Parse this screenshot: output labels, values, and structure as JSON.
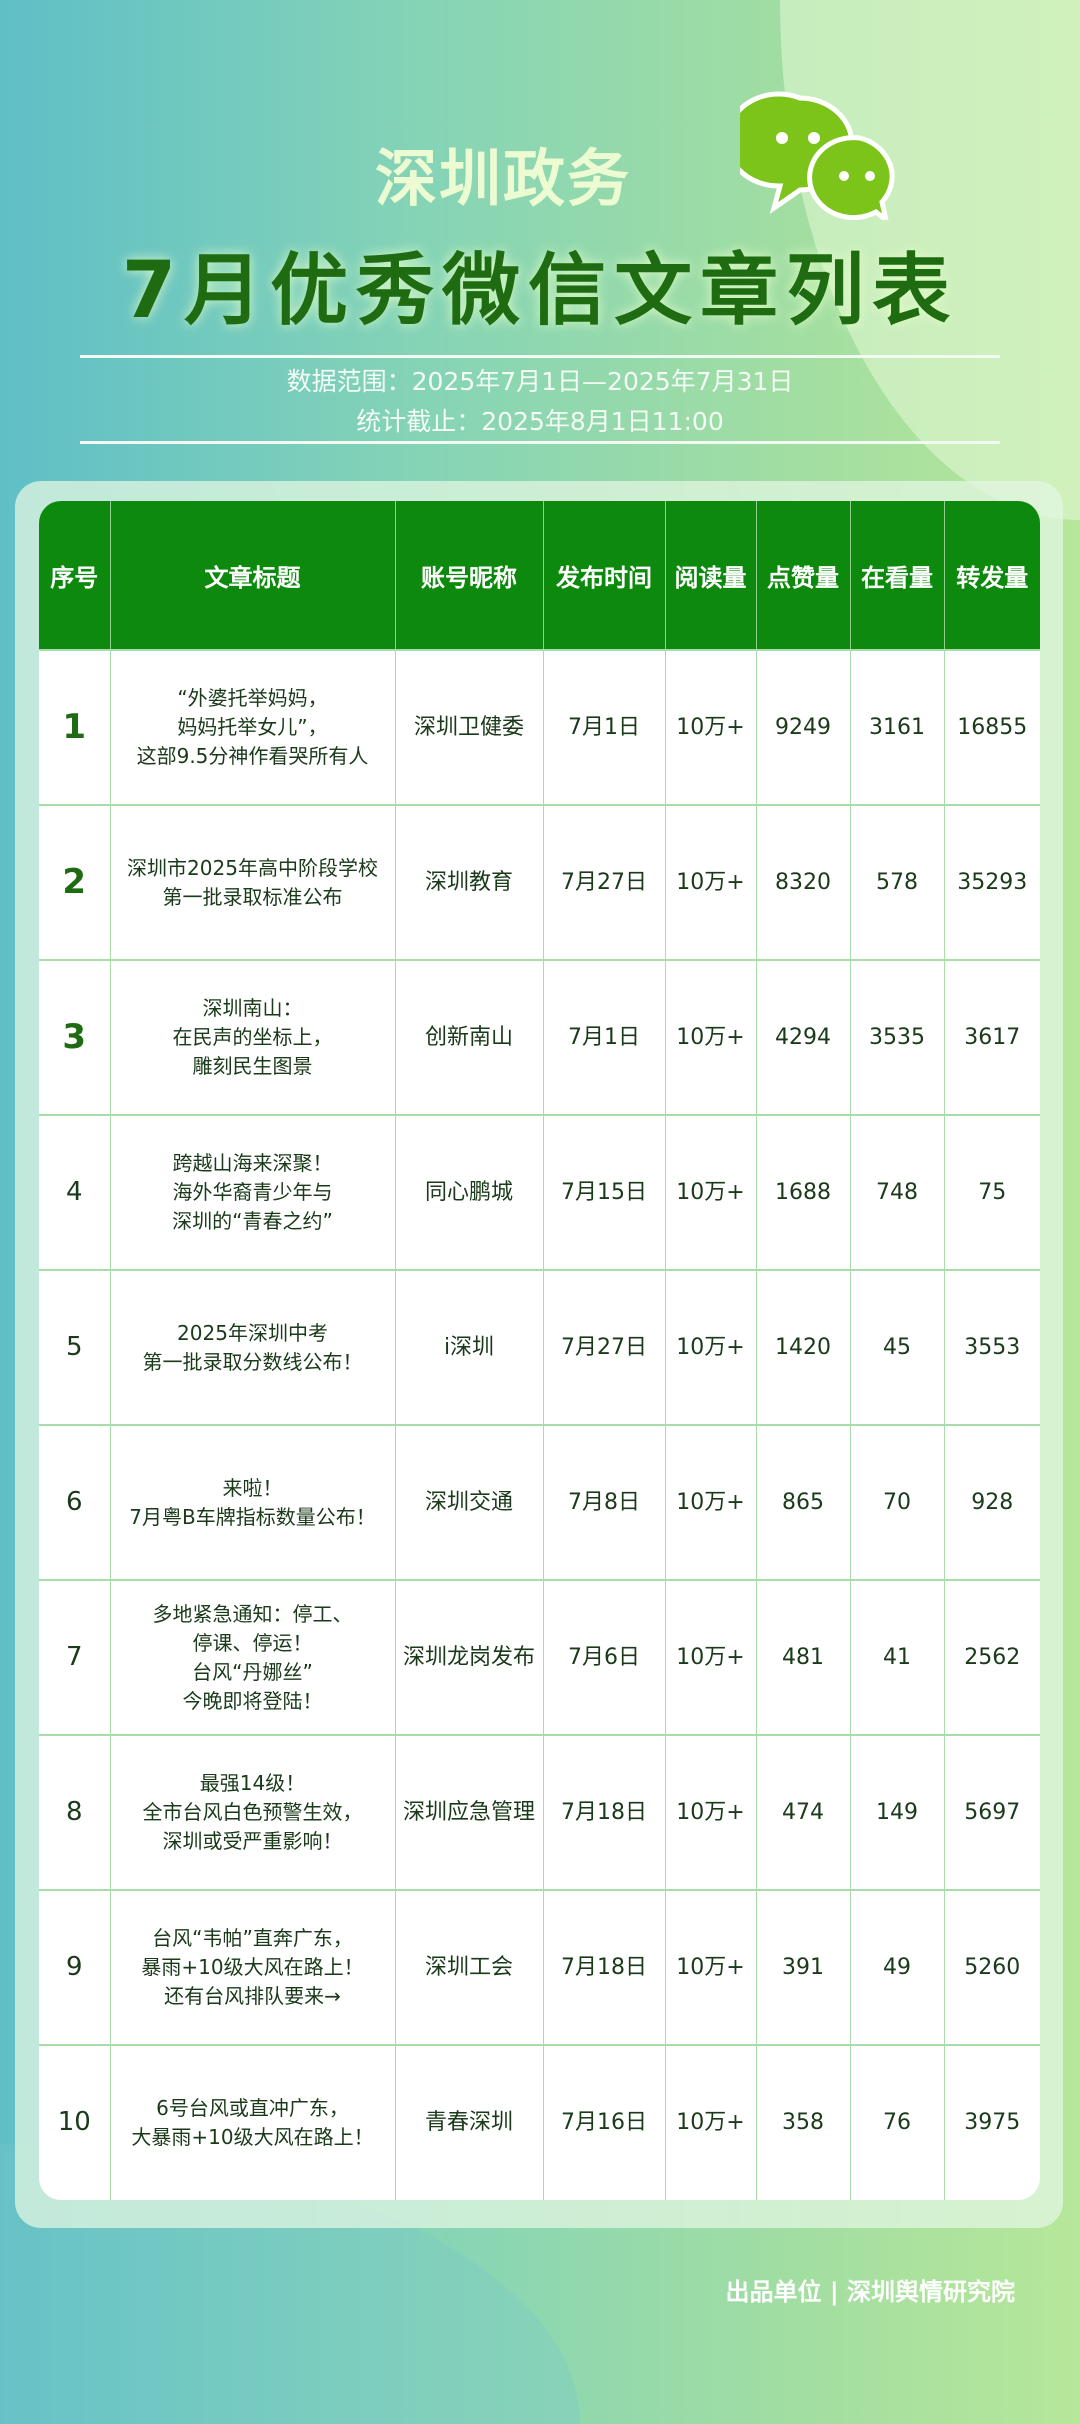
{
  "header": {
    "subtitle": "深圳政务",
    "title": "7月优秀微信文章列表",
    "logo_icon": "wechat-icon",
    "data_range": "数据范围：2025年7月1日—2025年7月31日",
    "cutoff": "统计截止：2025年8月1日11:00"
  },
  "table": {
    "columns": [
      "序号",
      "文章标题",
      "账号昵称",
      "发布时间",
      "阅读量",
      "点赞量",
      "在看量",
      "转发量"
    ],
    "rows": [
      {
        "rank": "1",
        "title": "“外婆托举妈妈，\n妈妈托举女儿”，\n这部9.5分神作看哭所有人",
        "account": "深圳卫健委",
        "date": "7月1日",
        "reads": "10万+",
        "likes": "9249",
        "views": "3161",
        "shares": "16855"
      },
      {
        "rank": "2",
        "title": "深圳市2025年高中阶段学校\n第一批录取标准公布",
        "account": "深圳教育",
        "date": "7月27日",
        "reads": "10万+",
        "likes": "8320",
        "views": "578",
        "shares": "35293"
      },
      {
        "rank": "3",
        "title": "深圳南山：\n在民声的坐标上，\n雕刻民生图景",
        "account": "创新南山",
        "date": "7月1日",
        "reads": "10万+",
        "likes": "4294",
        "views": "3535",
        "shares": "3617"
      },
      {
        "rank": "4",
        "title": "跨越山海来深聚！\n海外华裔青少年与\n深圳的“青春之约”",
        "account": "同心鹏城",
        "date": "7月15日",
        "reads": "10万+",
        "likes": "1688",
        "views": "748",
        "shares": "75"
      },
      {
        "rank": "5",
        "title": "2025年深圳中考\n第一批录取分数线公布！",
        "account": "i深圳",
        "date": "7月27日",
        "reads": "10万+",
        "likes": "1420",
        "views": "45",
        "shares": "3553"
      },
      {
        "rank": "6",
        "title": "来啦！\n7月粤B车牌指标数量公布！",
        "account": "深圳交通",
        "date": "7月8日",
        "reads": "10万+",
        "likes": "865",
        "views": "70",
        "shares": "928"
      },
      {
        "rank": "7",
        "title": "多地紧急通知：停工、\n停课、停运！\n台风“丹娜丝”\n今晚即将登陆！",
        "account": "深圳龙岗发布",
        "date": "7月6日",
        "reads": "10万+",
        "likes": "481",
        "views": "41",
        "shares": "2562"
      },
      {
        "rank": "8",
        "title": "最强14级！\n全市台风白色预警生效，\n深圳或受严重影响！",
        "account": "深圳应急管理",
        "date": "7月18日",
        "reads": "10万+",
        "likes": "474",
        "views": "149",
        "shares": "5697"
      },
      {
        "rank": "9",
        "title": "台风“韦帕”直奔广东，\n暴雨+10级大风在路上！\n还有台风排队要来→",
        "account": "深圳工会",
        "date": "7月18日",
        "reads": "10万+",
        "likes": "391",
        "views": "49",
        "shares": "5260"
      },
      {
        "rank": "10",
        "title": "6号台风或直冲广东，\n大暴雨+10级大风在路上！",
        "account": "青春深圳",
        "date": "7月16日",
        "reads": "10万+",
        "likes": "358",
        "views": "76",
        "shares": "3975"
      }
    ]
  },
  "footer": "出品单位 | 深圳舆情研究院",
  "colors": {
    "header_green": "#0d8a0d",
    "title_green": "#1f6b12",
    "logo_green": "#7cc31a"
  }
}
